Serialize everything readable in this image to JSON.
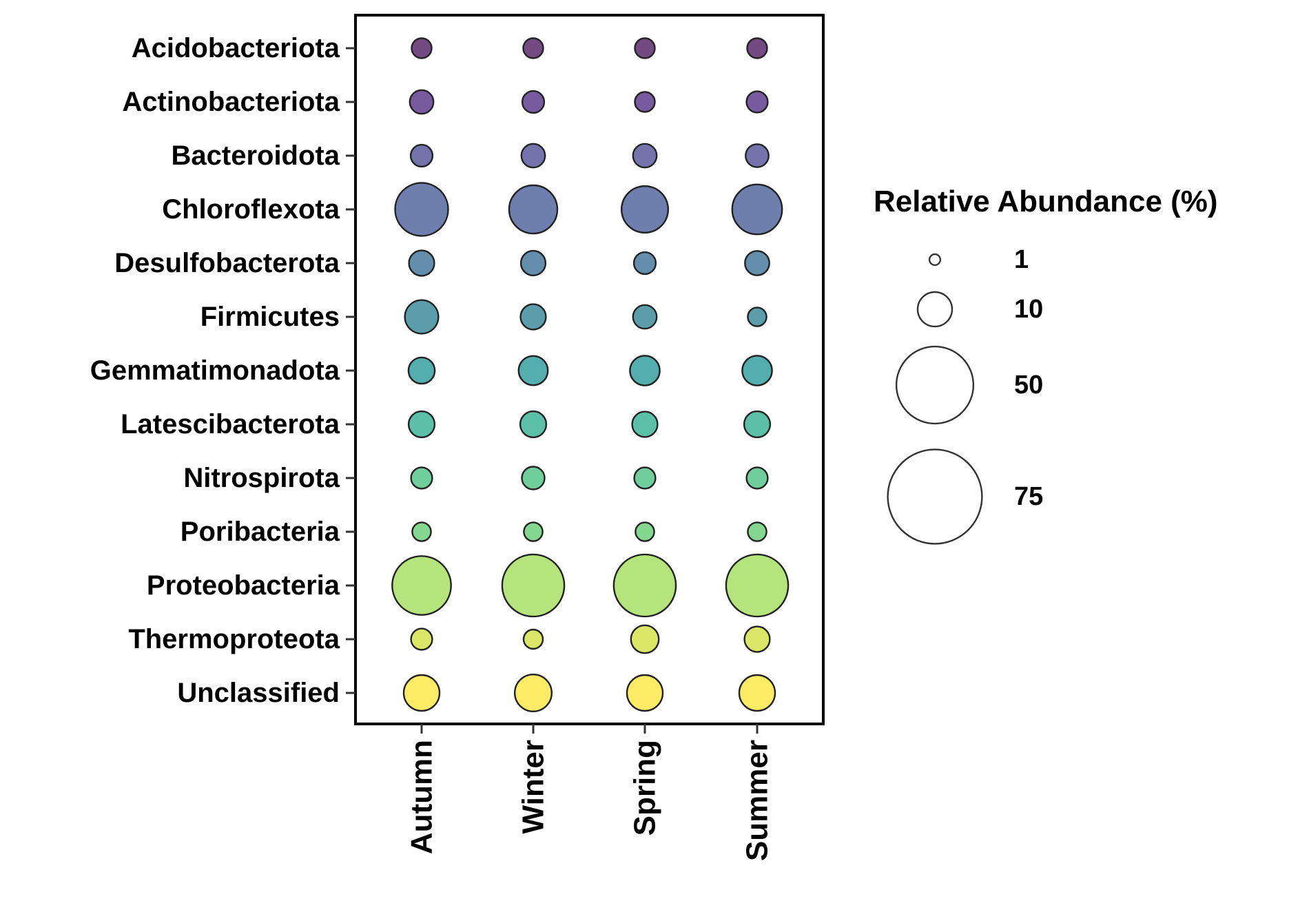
{
  "chart_data": {
    "type": "bubble",
    "title": "",
    "xlabel": "",
    "ylabel": "",
    "categories_x": [
      "Autumn",
      "Winter",
      "Spring",
      "Summer"
    ],
    "categories_y": [
      "Acidobacteriota",
      "Actinobacteriota",
      "Bacteroidota",
      "Chloroflexota",
      "Desulfobacterota",
      "Firmicutes",
      "Gemmatimonadota",
      "Latescibacterota",
      "Nitrospirota",
      "Poribacteria",
      "Proteobacteria",
      "Thermoproteota",
      "Unclassified"
    ],
    "colors": [
      "#440154",
      "#482878",
      "#3e4a89",
      "#31688e",
      "#26828e",
      "#1f9e89",
      "#35b779",
      "#6ece58",
      "#b5de2b",
      "#fde725",
      "#1f9e89",
      "#35b779",
      "#fde725"
    ],
    "color_map": {
      "Acidobacteriota": "#5b2a6b",
      "Actinobacteriota": "#5e3f8e",
      "Bacteroidota": "#5c5a9e",
      "Chloroflexota": "#55679f",
      "Desulfobacterota": "#4a7a9f",
      "Firmicutes": "#3e8c9b",
      "Gemmatimonadota": "#36a0a0",
      "Latescibacterota": "#3fb59a",
      "Nitrospirota": "#56c689",
      "Poribacteria": "#6fd07a",
      "Proteobacteria": "#a9df65",
      "Thermoproteota": "#d4e24a",
      "Unclassified": "#fde84a"
    },
    "values": [
      [
        2.5,
        2.5,
        2.5,
        2.5
      ],
      [
        3.5,
        3.0,
        2.5,
        2.8
      ],
      [
        3.0,
        3.5,
        3.5,
        3.3
      ],
      [
        17.5,
        14.5,
        13.5,
        15.5
      ],
      [
        4.0,
        3.8,
        3.0,
        3.7
      ],
      [
        7.0,
        4.0,
        3.5,
        2.2
      ],
      [
        4.3,
        5.3,
        5.5,
        5.5
      ],
      [
        4.2,
        4.2,
        4.0,
        4.2
      ],
      [
        2.8,
        3.2,
        2.8,
        2.8
      ],
      [
        2.2,
        2.2,
        2.2,
        2.2
      ],
      [
        21.5,
        24.0,
        24.0,
        24.0
      ],
      [
        2.8,
        2.3,
        4.8,
        4.0
      ],
      [
        8.0,
        8.5,
        8.0,
        8.0
      ]
    ],
    "legend": {
      "title": "Relative Abundance (%)",
      "breaks": [
        1,
        10,
        50,
        75
      ],
      "labels": [
        "1",
        "10",
        "50",
        "75"
      ],
      "placement": "right"
    },
    "grid": false
  }
}
